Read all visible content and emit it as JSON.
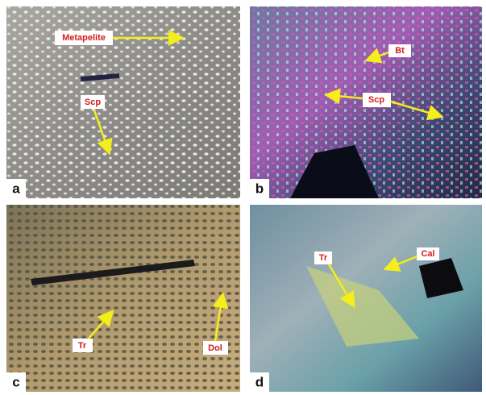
{
  "panels": [
    {
      "letter": "a",
      "labels": [
        "Metapelite",
        "Scp"
      ]
    },
    {
      "letter": "b",
      "labels": [
        "Bt",
        "Scp"
      ]
    },
    {
      "letter": "c",
      "labels": [
        "Tr",
        "Dol"
      ]
    },
    {
      "letter": "d",
      "labels": [
        "Cal",
        "Tr"
      ]
    }
  ]
}
